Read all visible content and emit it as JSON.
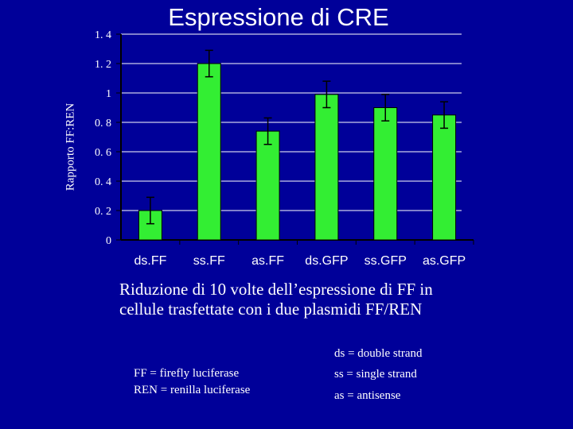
{
  "colors": {
    "background": "#000099",
    "bar": "#33ee33",
    "text": "#ffffff",
    "grid": "#ffffff",
    "axis": "#000000"
  },
  "chart_data": {
    "type": "bar",
    "title": "Espressione di CRE",
    "ylabel": "Rapporto FF:REN",
    "xlabel": "",
    "categories": [
      "ds.FF",
      "ss.FF",
      "as.FF",
      "ds.GFP",
      "ss.GFP",
      "as.GFP"
    ],
    "values": [
      0.2,
      1.2,
      0.74,
      0.99,
      0.9,
      0.85
    ],
    "error": [
      0.09,
      0.09,
      0.09,
      0.09,
      0.09,
      0.09
    ],
    "ylim": [
      0,
      1.4
    ],
    "yticks": [
      "0",
      "0. 2",
      "0. 4",
      "0. 6",
      "0. 8",
      "1",
      "1. 2",
      "1. 4"
    ],
    "grid": true,
    "legend": "none"
  },
  "caption": {
    "line1": "Riduzione di 10 volte dell’espressione di FF in",
    "line2": "cellule trasfettate con i due plasmidi FF/REN"
  },
  "notes": {
    "ff": "FF = firefly luciferase",
    "ren": "REN = renilla luciferase",
    "ds": "ds = double strand",
    "ss": "ss = single strand",
    "as": "as = antisense"
  }
}
